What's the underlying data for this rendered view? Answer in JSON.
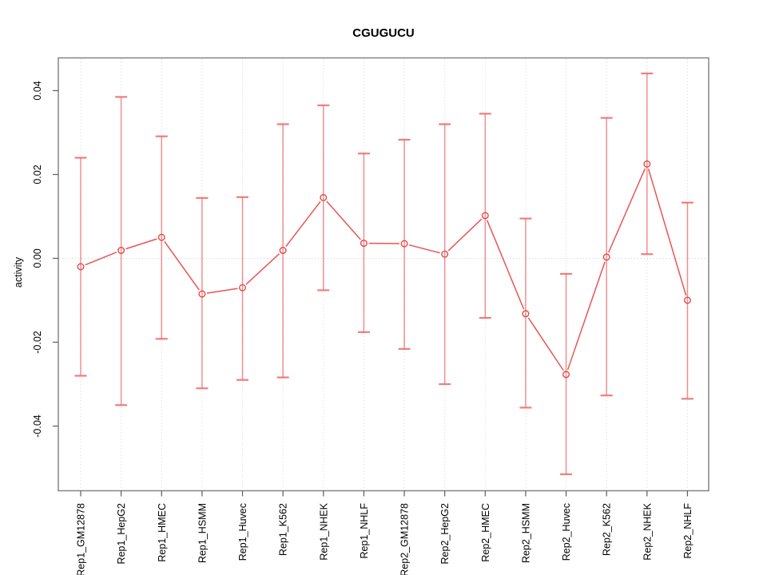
{
  "chart_data": {
    "type": "line",
    "title": "CGUGUCU",
    "xlabel": "",
    "ylabel": "activity",
    "legend_position": "none",
    "marker": "open-circle",
    "categories": [
      "Rep1_GM12878",
      "Rep1_HepG2",
      "Rep1_HMEC",
      "Rep1_HSMM",
      "Rep1_Huvec",
      "Rep1_K562",
      "Rep1_NHEK",
      "Rep1_NHLF",
      "Rep2_GM12878",
      "Rep2_HepG2",
      "Rep2_HMEC",
      "Rep2_HSMM",
      "Rep2_Huvec",
      "Rep2_K562",
      "Rep2_NHEK",
      "Rep2_NHLF"
    ],
    "series": [
      {
        "name": "activity",
        "values": [
          -0.002,
          0.0019,
          0.005,
          -0.0085,
          -0.007,
          0.0019,
          0.0145,
          0.0036,
          0.0035,
          0.001,
          0.0102,
          -0.0132,
          -0.0277,
          0.0003,
          0.0225,
          -0.01
        ],
        "upper": [
          0.024,
          0.0385,
          0.0291,
          0.0144,
          0.0146,
          0.032,
          0.0365,
          0.025,
          0.0283,
          0.032,
          0.0345,
          0.0095,
          -0.0037,
          0.0335,
          0.0441,
          0.0133
        ],
        "lower": [
          -0.028,
          -0.035,
          -0.0192,
          -0.031,
          -0.029,
          -0.0284,
          -0.0076,
          -0.0176,
          -0.0216,
          -0.03,
          -0.0142,
          -0.0356,
          -0.0515,
          -0.0327,
          0.001,
          -0.0335
        ]
      }
    ],
    "yticks": [
      {
        "value": -0.04,
        "label": "-0.04"
      },
      {
        "value": -0.02,
        "label": "-0.02"
      },
      {
        "value": 0.0,
        "label": "0.00"
      },
      {
        "value": 0.02,
        "label": "0.02"
      },
      {
        "value": 0.04,
        "label": "0.04"
      }
    ],
    "ylim": [
      -0.0553,
      0.0478
    ],
    "grid": {
      "vertical_category_lines": true,
      "zero_line": true,
      "style": "dotted"
    },
    "colors": {
      "series": "#e74545",
      "error_bar": "#ef6666",
      "grid_line": "#d4d4d4",
      "zero_line": "#cfcfcf",
      "axis_box": "#7d7d7d",
      "tick": "#5c5c5c",
      "text": "#000000",
      "background": "#ffffff"
    }
  }
}
